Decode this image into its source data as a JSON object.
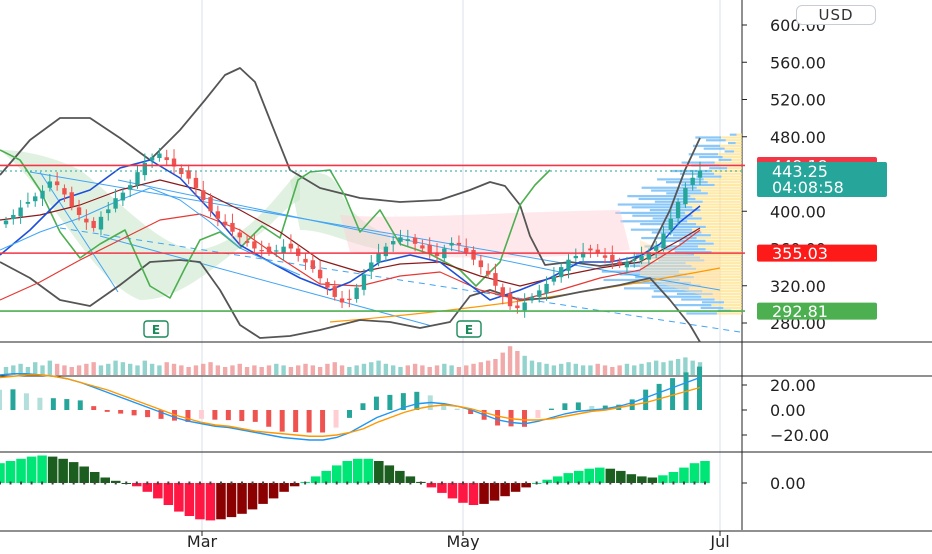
{
  "currency_label": "USD",
  "colors": {
    "up": "#26a69a",
    "down": "#ef5350",
    "red_level": "#f23645",
    "green_level": "#4caf50",
    "price_teal": "#26a69a",
    "band_gray": "#555555",
    "cloud_green": "#4caf50",
    "ema_blue": "#1e4fd8",
    "ema_dark_red": "#8b1a1a",
    "ema_red": "#e53935",
    "ema_orange": "#ff9800",
    "trend_lightblue": "#42a5f5",
    "macd_blue": "#2196f3",
    "signal_orange": "#ff9800",
    "osc_bright_green": "#00e676",
    "osc_dark_green": "#1b5e20",
    "osc_bright_red": "#ff1744",
    "osc_dark_red": "#8b0000"
  },
  "chart_data": {
    "type": "candlestick",
    "x_tick_labels": [
      "Mar",
      "May",
      "Jul"
    ],
    "price_axis": {
      "ticks": [
        600,
        560,
        520,
        480,
        400,
        320,
        280
      ],
      "tick_labels": [
        "600.00",
        "560.00",
        "520.00",
        "480.00",
        "400.00",
        "320.00",
        "280.00"
      ],
      "ylim": [
        268,
        610
      ]
    },
    "price_labels": [
      {
        "value": 449.19,
        "text": "449.19",
        "role": "resistance"
      },
      {
        "value": 443.25,
        "text": "443.25",
        "role": "last_price",
        "countdown": "04:08:58"
      },
      {
        "value": 355.03,
        "text": "355.03",
        "role": "support"
      },
      {
        "value": 292.81,
        "text": "292.81",
        "role": "support_low"
      }
    ],
    "earnings_markers": [
      "E",
      "E"
    ],
    "candles_close": [
      390,
      396,
      404,
      410,
      416,
      422,
      432,
      428,
      418,
      405,
      396,
      388,
      382,
      394,
      402,
      414,
      420,
      428,
      442,
      452,
      458,
      462,
      455,
      448,
      440,
      435,
      425,
      412,
      400,
      392,
      385,
      378,
      372,
      366,
      360,
      358,
      356,
      358,
      362,
      360,
      352,
      345,
      338,
      328,
      318,
      308,
      302,
      305,
      318,
      332,
      345,
      355,
      362,
      368,
      372,
      370,
      365,
      360,
      355,
      352,
      360,
      366,
      364,
      356,
      348,
      340,
      332,
      320,
      308,
      298,
      296,
      302,
      308,
      315,
      322,
      330,
      340,
      348,
      352,
      356,
      358,
      355,
      350,
      346,
      343,
      345,
      348,
      352,
      356,
      362,
      376,
      392,
      410,
      425,
      436,
      443.25
    ],
    "volume_rel": [
      0.5,
      0.6,
      0.7,
      0.5,
      0.8,
      0.6,
      0.9,
      0.7,
      0.6,
      0.5,
      0.6,
      0.7,
      0.8,
      0.6,
      0.7,
      0.9,
      0.8,
      0.7,
      0.6,
      0.9,
      0.7,
      0.6,
      0.8,
      0.7,
      0.6,
      0.5,
      0.6,
      0.7,
      0.8,
      0.6,
      0.5,
      0.6,
      0.7,
      0.5,
      0.6,
      0.5,
      0.6,
      0.7,
      0.6,
      0.5,
      0.6,
      0.7,
      0.6,
      0.5,
      0.7,
      0.8,
      0.6,
      0.5,
      0.6,
      0.7,
      0.8,
      0.9,
      0.7,
      0.6,
      0.5,
      0.6,
      0.7,
      0.6,
      0.5,
      0.6,
      0.7,
      0.6,
      0.5,
      0.6,
      0.7,
      0.8,
      0.9,
      1.0,
      1.4,
      1.8,
      1.5,
      1.2,
      0.9,
      0.8,
      0.7,
      0.6,
      0.7,
      0.8,
      0.7,
      0.6,
      0.6,
      0.7,
      0.6,
      0.5,
      0.6,
      0.7,
      0.6,
      0.7,
      0.8,
      0.9,
      0.8,
      0.9,
      1.0,
      1.1,
      0.9,
      0.8
    ],
    "macd_axis": {
      "ticks": [
        20,
        0,
        -20
      ],
      "tick_labels": [
        "20.00",
        "0.00",
        "−20.00"
      ],
      "ylim": [
        -30,
        30
      ]
    },
    "macd_line": [
      28,
      29,
      29,
      28,
      27,
      25,
      22,
      18,
      14,
      10,
      6,
      2,
      -2,
      -6,
      -9,
      -11,
      -13,
      -14,
      -16,
      -18,
      -20,
      -22,
      -23,
      -24,
      -24,
      -22,
      -18,
      -12,
      -6,
      -2,
      2,
      5,
      6,
      5,
      3,
      0,
      -4,
      -8,
      -10,
      -11,
      -9,
      -6,
      -3,
      -1,
      0,
      1,
      3,
      6,
      10,
      14,
      18,
      22,
      26
    ],
    "signal_line": [
      26,
      27,
      28,
      28,
      27,
      25,
      22,
      19,
      16,
      12,
      8,
      4,
      0,
      -4,
      -7,
      -10,
      -12,
      -13,
      -15,
      -17,
      -18,
      -19,
      -20,
      -21,
      -21,
      -20,
      -18,
      -15,
      -10,
      -6,
      -2,
      1,
      3,
      4,
      3,
      1,
      -2,
      -5,
      -7,
      -8,
      -8,
      -7,
      -5,
      -3,
      -1,
      0,
      2,
      4,
      6,
      9,
      12,
      15,
      18
    ],
    "osc_axis": {
      "ticks": [
        0
      ],
      "tick_labels": [
        "0.00"
      ],
      "ylim": [
        -40,
        25
      ]
    },
    "oscillator": [
      18,
      20,
      22,
      24,
      25,
      24,
      22,
      19,
      15,
      10,
      5,
      2,
      0,
      -3,
      -8,
      -14,
      -20,
      -26,
      -30,
      -33,
      -34,
      -33,
      -31,
      -28,
      -24,
      -19,
      -14,
      -8,
      -3,
      1,
      6,
      11,
      16,
      20,
      22,
      22,
      20,
      16,
      11,
      6,
      1,
      -4,
      -9,
      -14,
      -18,
      -20,
      -19,
      -16,
      -12,
      -8,
      -4,
      0,
      3,
      6,
      9,
      11,
      13,
      14,
      13,
      11,
      8,
      6,
      5,
      7,
      10,
      14,
      18,
      20
    ]
  }
}
